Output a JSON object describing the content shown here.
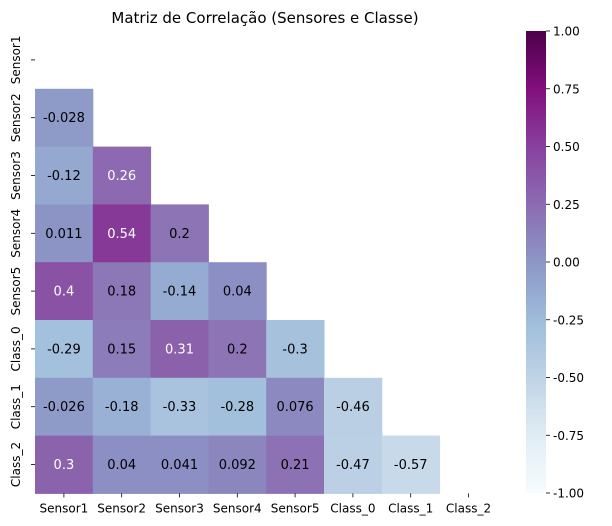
{
  "chart_data": {
    "type": "heatmap",
    "title": "Matriz de Correlação (Sensores e Classe)",
    "xlabel": "",
    "ylabel": "",
    "rows": [
      "Sensor1",
      "Sensor2",
      "Sensor3",
      "Sensor4",
      "Sensor5",
      "Class_0",
      "Class_1",
      "Class_2"
    ],
    "columns": [
      "Sensor1",
      "Sensor2",
      "Sensor3",
      "Sensor4",
      "Sensor5",
      "Class_0",
      "Class_1",
      "Class_2"
    ],
    "mask": "upper-triangle-including-diagonal",
    "values": [
      [
        null,
        null,
        null,
        null,
        null,
        null,
        null,
        null
      ],
      [
        "-0.028",
        null,
        null,
        null,
        null,
        null,
        null,
        null
      ],
      [
        "-0.12",
        "0.26",
        null,
        null,
        null,
        null,
        null,
        null
      ],
      [
        "0.011",
        "0.54",
        "0.2",
        null,
        null,
        null,
        null,
        null
      ],
      [
        "0.4",
        "0.18",
        "-0.14",
        "0.04",
        null,
        null,
        null,
        null
      ],
      [
        "-0.29",
        "0.15",
        "0.31",
        "0.2",
        "-0.3",
        null,
        null,
        null
      ],
      [
        "-0.026",
        "-0.18",
        "-0.33",
        "-0.28",
        "0.076",
        "-0.46",
        null,
        null
      ],
      [
        "0.3",
        "0.04",
        "0.041",
        "0.092",
        "0.21",
        "-0.47",
        "-0.57",
        null
      ]
    ],
    "colormap": "BuPu",
    "colormap_stops": [
      "#f7fcfd",
      "#e0ecf4",
      "#bfd3e6",
      "#9ebcda",
      "#8c96c6",
      "#8c6bb1",
      "#88419d",
      "#810f7c",
      "#4d004b"
    ],
    "vmin": -1.0,
    "vmax": 1.0,
    "colorbar_ticks": [
      "-1.00",
      "-0.75",
      "-0.50",
      "-0.25",
      "0.00",
      "0.25",
      "0.50",
      "0.75",
      "1.00"
    ],
    "annotation_colors": {
      "light": "#000000",
      "dark": "#ffffff"
    }
  }
}
